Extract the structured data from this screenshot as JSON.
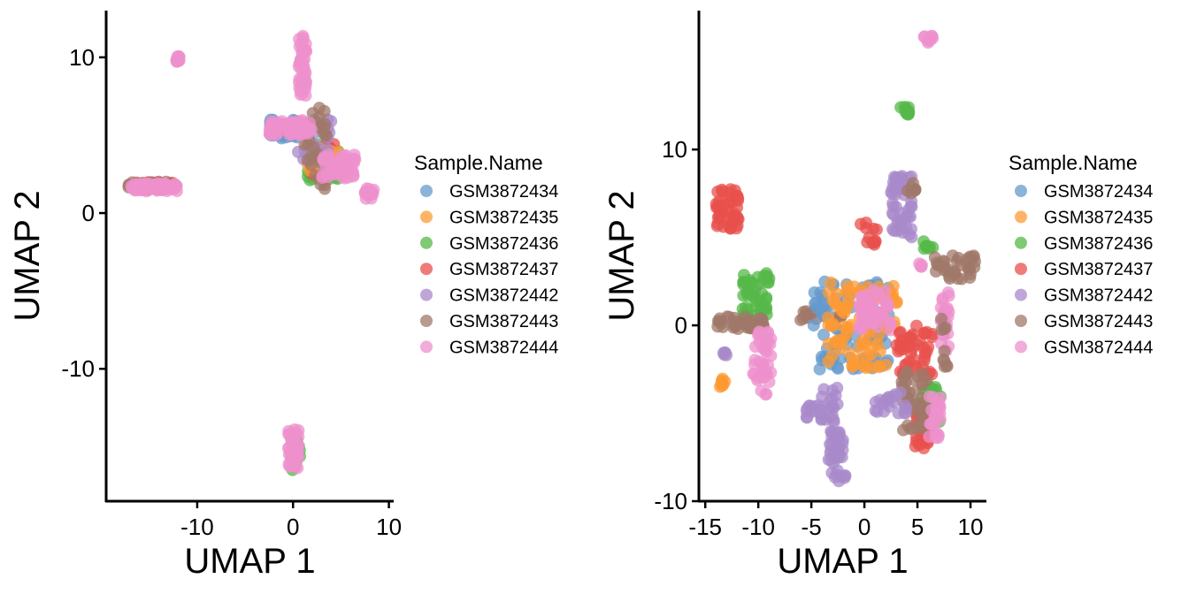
{
  "colors": {
    "GSM3872434": "#6699CC",
    "GSM3872435": "#FF9933",
    "GSM3872436": "#55B848",
    "GSM3872437": "#E8504C",
    "GSM3872442": "#A88ACB",
    "GSM3872443": "#A0786A",
    "GSM3872444": "#EE90CC"
  },
  "chart_data": [
    {
      "type": "scatter",
      "xlabel": "UMAP 1",
      "ylabel": "UMAP 2",
      "xlim": [
        -19.5,
        10.5
      ],
      "ylim": [
        -18.5,
        13
      ],
      "xticks": [
        -10,
        0,
        10
      ],
      "yticks": [
        -10,
        0,
        10
      ],
      "grid": false,
      "legend": {
        "title": "Sample.Name",
        "position": "right",
        "entries": [
          "GSM3872434",
          "GSM3872435",
          "GSM3872436",
          "GSM3872437",
          "GSM3872442",
          "GSM3872443",
          "GSM3872444"
        ]
      },
      "clusters": [
        {
          "series": "GSM3872437",
          "x": [
            -17.2,
            -12.2
          ],
          "y": [
            1.5,
            2.0
          ],
          "n": 40
        },
        {
          "series": "GSM3872443",
          "x": [
            -17.2,
            -12.2
          ],
          "y": [
            1.5,
            2.0
          ],
          "n": 25
        },
        {
          "series": "GSM3872444",
          "x": [
            -17.0,
            -12.0
          ],
          "y": [
            1.4,
            1.9
          ],
          "n": 60
        },
        {
          "series": "GSM3872444",
          "x": [
            -12.2,
            -11.8
          ],
          "y": [
            9.7,
            10.1
          ],
          "n": 12
        },
        {
          "series": "GSM3872434",
          "x": [
            -2.5,
            1.5
          ],
          "y": [
            4.8,
            6.0
          ],
          "n": 40
        },
        {
          "series": "GSM3872436",
          "x": [
            1.5,
            5.0
          ],
          "y": [
            2.0,
            4.5
          ],
          "n": 30
        },
        {
          "series": "GSM3872437",
          "x": [
            1.5,
            4.5
          ],
          "y": [
            2.5,
            4.5
          ],
          "n": 35
        },
        {
          "series": "GSM3872435",
          "x": [
            1.5,
            5.5
          ],
          "y": [
            2.5,
            4.2
          ],
          "n": 30
        },
        {
          "series": "GSM3872442",
          "x": [
            0.5,
            4.0
          ],
          "y": [
            3.0,
            6.0
          ],
          "n": 25
        },
        {
          "series": "GSM3872443",
          "x": [
            1.0,
            3.5
          ],
          "y": [
            1.5,
            7.0
          ],
          "n": 30
        },
        {
          "series": "GSM3872444",
          "x": [
            0.6,
            1.4
          ],
          "y": [
            7.5,
            11.5
          ],
          "n": 45
        },
        {
          "series": "GSM3872444",
          "x": [
            -2.5,
            2.0
          ],
          "y": [
            5.0,
            6.0
          ],
          "n": 55
        },
        {
          "series": "GSM3872444",
          "x": [
            3.0,
            6.5
          ],
          "y": [
            2.2,
            3.8
          ],
          "n": 45
        },
        {
          "series": "GSM3872444",
          "x": [
            7.5,
            8.5
          ],
          "y": [
            0.9,
            1.6
          ],
          "n": 18
        },
        {
          "series": "GSM3872436",
          "x": [
            -0.3,
            0.8
          ],
          "y": [
            -16.5,
            -14.0
          ],
          "n": 20
        },
        {
          "series": "GSM3872444",
          "x": [
            -0.5,
            0.6
          ],
          "y": [
            -16.5,
            -13.8
          ],
          "n": 50
        }
      ]
    },
    {
      "type": "scatter",
      "xlabel": "UMAP 1",
      "ylabel": "UMAP 2",
      "xlim": [
        -15.6,
        11.5
      ],
      "ylim": [
        -10,
        17.9
      ],
      "xticks": [
        -15,
        -10,
        -5,
        0,
        5,
        10
      ],
      "yticks": [
        -10,
        0,
        10
      ],
      "grid": false,
      "legend": {
        "title": "Sample.Name",
        "position": "right",
        "entries": [
          "GSM3872434",
          "GSM3872435",
          "GSM3872436",
          "GSM3872437",
          "GSM3872442",
          "GSM3872443",
          "GSM3872444"
        ]
      },
      "clusters": [
        {
          "series": "GSM3872437",
          "x": [
            -14.0,
            -11.8
          ],
          "y": [
            5.5,
            7.8
          ],
          "n": 45
        },
        {
          "series": "GSM3872436",
          "x": [
            -11.5,
            -8.8
          ],
          "y": [
            0.5,
            3.0
          ],
          "n": 45
        },
        {
          "series": "GSM3872443",
          "x": [
            -14.2,
            -9.5
          ],
          "y": [
            -0.2,
            0.5
          ],
          "n": 40
        },
        {
          "series": "GSM3872444",
          "x": [
            -10.5,
            -8.8
          ],
          "y": [
            -4.0,
            0.0
          ],
          "n": 45
        },
        {
          "series": "GSM3872435",
          "x": [
            -13.6,
            -13.0
          ],
          "y": [
            -3.5,
            -3.0
          ],
          "n": 8
        },
        {
          "series": "GSM3872442",
          "x": [
            -13.6,
            -13.0
          ],
          "y": [
            -1.7,
            -1.3
          ],
          "n": 5
        },
        {
          "series": "GSM3872443",
          "x": [
            -6.5,
            -2.0
          ],
          "y": [
            0.3,
            0.9
          ],
          "n": 15
        },
        {
          "series": "GSM3872434",
          "x": [
            -5.0,
            2.5
          ],
          "y": [
            -2.5,
            2.5
          ],
          "n": 90
        },
        {
          "series": "GSM3872435",
          "x": [
            -3.5,
            3.2
          ],
          "y": [
            -2.5,
            2.5
          ],
          "n": 90
        },
        {
          "series": "GSM3872444",
          "x": [
            -0.5,
            2.5
          ],
          "y": [
            -0.5,
            2.0
          ],
          "n": 45
        },
        {
          "series": "GSM3872437",
          "x": [
            3.0,
            6.5
          ],
          "y": [
            -3.0,
            0.0
          ],
          "n": 50
        },
        {
          "series": "GSM3872436",
          "x": [
            5.0,
            7.2
          ],
          "y": [
            -6.0,
            -3.5
          ],
          "n": 30
        },
        {
          "series": "GSM3872437",
          "x": [
            4.8,
            6.2
          ],
          "y": [
            -7.0,
            -5.0
          ],
          "n": 25
        },
        {
          "series": "GSM3872443",
          "x": [
            3.5,
            6.0
          ],
          "y": [
            -6.0,
            -2.5
          ],
          "n": 40
        },
        {
          "series": "GSM3872444",
          "x": [
            6.0,
            7.2
          ],
          "y": [
            -6.5,
            -4.0
          ],
          "n": 25
        },
        {
          "series": "GSM3872442",
          "x": [
            2.5,
            4.5
          ],
          "y": [
            5.0,
            8.5
          ],
          "n": 55
        },
        {
          "series": "GSM3872443",
          "x": [
            3.8,
            4.8
          ],
          "y": [
            7.5,
            8.2
          ],
          "n": 8
        },
        {
          "series": "GSM3872436",
          "x": [
            3.4,
            4.2
          ],
          "y": [
            11.8,
            12.5
          ],
          "n": 12
        },
        {
          "series": "GSM3872437",
          "x": [
            -0.5,
            1.2
          ],
          "y": [
            4.5,
            6.2
          ],
          "n": 12
        },
        {
          "series": "GSM3872436",
          "x": [
            5.5,
            6.5
          ],
          "y": [
            4.3,
            5.0
          ],
          "n": 8
        },
        {
          "series": "GSM3872444",
          "x": [
            5.6,
            6.5
          ],
          "y": [
            16.0,
            16.5
          ],
          "n": 10
        },
        {
          "series": "GSM3872443",
          "x": [
            6.5,
            10.5
          ],
          "y": [
            2.5,
            4.0
          ],
          "n": 35
        },
        {
          "series": "GSM3872444",
          "x": [
            7.2,
            8.0
          ],
          "y": [
            -1.5,
            2.0
          ],
          "n": 25
        },
        {
          "series": "GSM3872443",
          "x": [
            7.0,
            7.8
          ],
          "y": [
            -2.5,
            0.5
          ],
          "n": 10
        },
        {
          "series": "GSM3872444",
          "x": [
            5.0,
            6.0
          ],
          "y": [
            3.2,
            3.6
          ],
          "n": 4
        },
        {
          "series": "GSM3872442",
          "x": [
            -5.5,
            -2.8
          ],
          "y": [
            -5.5,
            -4.5
          ],
          "n": 25
        },
        {
          "series": "GSM3872442",
          "x": [
            -4.0,
            -2.5
          ],
          "y": [
            -4.5,
            -3.5
          ],
          "n": 8
        },
        {
          "series": "GSM3872442",
          "x": [
            -3.5,
            -1.8
          ],
          "y": [
            -9.0,
            -6.0
          ],
          "n": 40
        },
        {
          "series": "GSM3872442",
          "x": [
            1.0,
            4.0
          ],
          "y": [
            -5.0,
            -3.5
          ],
          "n": 20
        }
      ]
    }
  ]
}
